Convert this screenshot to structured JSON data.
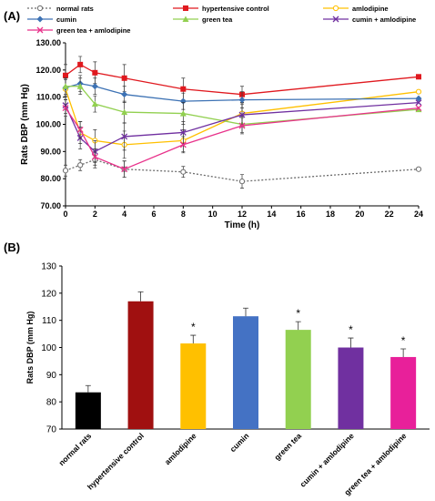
{
  "panels": {
    "a_label": "(A)",
    "b_label": "(B)"
  },
  "colors": {
    "normal rats": "#6d6d6d",
    "hypertensive control": "#e0191f",
    "amlodipine": "#ffc000",
    "cumin": "#3d72b4",
    "green tea": "#92d050",
    "cumin + amlodipine": "#7030a0",
    "green tea + amlodipine": "#e8318a"
  },
  "chart_data": [
    {
      "type": "line",
      "panel": "(A)",
      "ylabel": "Rats DBP (mm Hg)",
      "xlabel": "Time (h)",
      "xlim": [
        0,
        24
      ],
      "ylim": [
        70,
        130
      ],
      "xticks": [
        0,
        2,
        4,
        6,
        8,
        10,
        12,
        14,
        16,
        18,
        20,
        22,
        24
      ],
      "yticks": [
        "70.00",
        "80.00",
        "90.00",
        "100.00",
        "110.00",
        "120.00",
        "130.00"
      ],
      "legend": [
        "normal rats",
        "hypertensive control",
        "amlodipine",
        "cumin",
        "green tea",
        "cumin + amlodipine",
        "green tea + amlodipine"
      ],
      "series": [
        {
          "name": "normal rats",
          "marker": "circle-open",
          "dash": true,
          "x": [
            0,
            1,
            2,
            4,
            8,
            12,
            24
          ],
          "y": [
            83,
            85,
            87,
            83.5,
            82.5,
            79,
            83.5
          ],
          "err": [
            2,
            2,
            3,
            3,
            2,
            2.5,
            0
          ]
        },
        {
          "name": "hypertensive control",
          "marker": "square",
          "x": [
            0,
            1,
            2,
            4,
            8,
            12,
            24
          ],
          "y": [
            118,
            122,
            119,
            117,
            113,
            111,
            117.5
          ],
          "err": [
            4,
            3,
            4,
            5,
            4,
            3,
            0
          ]
        },
        {
          "name": "amlodipine",
          "marker": "circle-open",
          "x": [
            0,
            1,
            2,
            4,
            8,
            12,
            24
          ],
          "y": [
            113,
            97,
            94,
            92.5,
            94,
            104,
            112
          ],
          "err": [
            4,
            4,
            4,
            5,
            4,
            4,
            0
          ]
        },
        {
          "name": "cumin",
          "marker": "diamond",
          "x": [
            0,
            1,
            2,
            4,
            8,
            12,
            24
          ],
          "y": [
            113.5,
            115,
            114,
            111,
            108.5,
            109,
            109.5
          ],
          "err": [
            3,
            3,
            3,
            3,
            3,
            3,
            0
          ]
        },
        {
          "name": "green tea",
          "marker": "triangle",
          "x": [
            0,
            1,
            2,
            4,
            8,
            12,
            24
          ],
          "y": [
            114,
            114,
            107.5,
            104.5,
            104,
            100,
            105.5
          ],
          "err": [
            3,
            3,
            3,
            4,
            4,
            3,
            0
          ]
        },
        {
          "name": "cumin + amlodipine",
          "marker": "x",
          "x": [
            0,
            1,
            2,
            4,
            8,
            12,
            24
          ],
          "y": [
            107,
            95,
            90,
            95.5,
            97,
            103.5,
            108
          ],
          "err": [
            3,
            4,
            4,
            5,
            4,
            4,
            0
          ]
        },
        {
          "name": "green tea + amlodipine",
          "marker": "x",
          "x": [
            0,
            1,
            2,
            4,
            8,
            12,
            24
          ],
          "y": [
            106,
            98,
            88,
            83.5,
            92.5,
            99.5,
            106
          ],
          "err": [
            3,
            3,
            3,
            3,
            3,
            3,
            0
          ]
        }
      ]
    },
    {
      "type": "bar",
      "panel": "(B)",
      "ylabel": "Rats DBP (mm Hg)",
      "ylim": [
        70,
        130
      ],
      "yticks": [
        "70",
        "80",
        "90",
        "100",
        "110",
        "120",
        "130"
      ],
      "categories": [
        "normal rats",
        "hypertensive control",
        "amlodipine",
        "cumin",
        "green tea",
        "cumin + amlodipine",
        "green tea + amlodipine"
      ],
      "values": [
        83.5,
        117,
        101.5,
        111.5,
        106.5,
        100,
        96.5
      ],
      "err": [
        2.5,
        3.5,
        3,
        3,
        3,
        3.5,
        3
      ],
      "significance": [
        "",
        "",
        "*",
        "",
        "*",
        "*",
        "*"
      ],
      "colors": [
        "#000000",
        "#a01010",
        "#ffc000",
        "#4472c4",
        "#92d050",
        "#7030a0",
        "#e8209a"
      ]
    }
  ]
}
